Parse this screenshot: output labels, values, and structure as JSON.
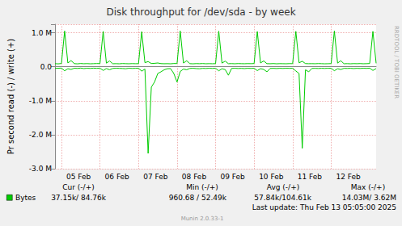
{
  "chart_data": {
    "type": "line",
    "title": "Disk throughput for /dev/sda - by week",
    "y_label": "Pr second read (-) / write (+)",
    "categories": [
      null,
      null,
      "05 Feb",
      null,
      null,
      null,
      null,
      null,
      null,
      null,
      null,
      null,
      null,
      null,
      "06 Feb",
      null,
      null,
      null,
      null,
      null,
      null,
      null,
      null,
      null,
      null,
      null,
      "07 Feb",
      null,
      null,
      null,
      null,
      null,
      null,
      null,
      null,
      null,
      null,
      null,
      "08 Feb",
      null,
      null,
      null,
      null,
      null,
      null,
      null,
      null,
      null,
      null,
      null,
      "09 Feb",
      null,
      null,
      null,
      null,
      null,
      null,
      null,
      null,
      null,
      null,
      null,
      "10 Feb",
      null,
      null,
      null,
      null,
      null,
      null,
      null,
      null,
      null,
      null,
      null,
      "11 Feb",
      null,
      null,
      null,
      null,
      null,
      null,
      null,
      null,
      null,
      null,
      null,
      "12 Feb",
      null,
      null,
      null,
      null,
      null,
      null,
      null,
      null,
      null,
      null,
      null,
      null,
      null,
      null
    ],
    "series": [
      {
        "name": "Bytes",
        "color": "#00cc00",
        "values": [
          90000,
          85000,
          95000,
          1050000,
          110000,
          180000,
          90000,
          85000,
          95000,
          88000,
          92000,
          86000,
          90000,
          94000,
          92000,
          1040000,
          105000,
          170000,
          88000,
          90000,
          86000,
          94000,
          90000,
          87000,
          92000,
          89000,
          90000,
          1030000,
          120000,
          150000,
          95000,
          100000,
          110000,
          92000,
          88000,
          90000,
          86000,
          95000,
          93000,
          1050000,
          108000,
          175000,
          90000,
          86000,
          92000,
          89000,
          94000,
          87000,
          91000,
          88000,
          91000,
          1045000,
          106000,
          165000,
          89000,
          92000,
          87000,
          93000,
          90000,
          88000,
          92000,
          90000,
          94000,
          1035000,
          110000,
          170000,
          90000,
          88000,
          93000,
          86000,
          91000,
          89000,
          87000,
          92000,
          90000,
          1040000,
          115000,
          160000,
          92000,
          89000,
          91000,
          88000,
          93000,
          90000,
          86000,
          89000,
          92000,
          1050000,
          107000,
          175000,
          88000,
          91000,
          86000,
          92000,
          89000,
          93000,
          87000,
          90000,
          95000,
          1040000,
          100000
        ]
      },
      {
        "name": "Bytes",
        "color": "#00cc00",
        "values": [
          -50000,
          -45000,
          -40000,
          -120000,
          -60000,
          -80000,
          -45000,
          -50000,
          -40000,
          -55000,
          -45000,
          -50000,
          -42000,
          -48000,
          -42000,
          -110000,
          -55000,
          -90000,
          -50000,
          -45000,
          -48000,
          -52000,
          -60000,
          -45000,
          -50000,
          -47000,
          -45000,
          -130000,
          -70000,
          -2550000,
          -600000,
          -450000,
          -200000,
          -150000,
          -90000,
          -60000,
          -55000,
          -200000,
          -450000,
          -140000,
          -70000,
          -90000,
          -50000,
          -45000,
          -55000,
          -60000,
          -48000,
          -52000,
          -45000,
          -50000,
          -44000,
          -120000,
          -60000,
          -85000,
          -250000,
          -50000,
          -45000,
          -52000,
          -48000,
          -55000,
          -46000,
          -50000,
          -45000,
          -115000,
          -58000,
          -80000,
          -150000,
          -50000,
          -47000,
          -53000,
          -46000,
          -50000,
          -44000,
          -48000,
          -46000,
          -125000,
          -200000,
          -2400000,
          -90000,
          -150000,
          -50000,
          -48000,
          -52000,
          -46000,
          -50000,
          -45000,
          -44000,
          -118000,
          -60000,
          -82000,
          -48000,
          -50000,
          -46000,
          -54000,
          -47000,
          -51000,
          -45000,
          -49000,
          -42000,
          -110000,
          -55000
        ]
      }
    ],
    "ylim": [
      -3000000,
      1250000
    ],
    "yticks": [
      {
        "value": -3000000,
        "label": "-3.0 M"
      },
      {
        "value": -2000000,
        "label": "-2.0 M"
      },
      {
        "value": -1000000,
        "label": "-1.0 M"
      },
      {
        "value": 0,
        "label": "0.0"
      },
      {
        "value": 1000000,
        "label": "1.0 M"
      }
    ],
    "grid": true,
    "stats_table": {
      "columns": [
        "Cur (-/+)",
        "Min (-/+)",
        "Avg (-/+)",
        "Max (-/+)"
      ],
      "cells": [
        "37.15k/ 84.76k",
        "960.68 / 52.49k",
        "57.84k/104.61k",
        "14.03M/ 3.62M"
      ]
    },
    "annotations": {
      "last_update": "Last update: Thu Feb 13 05:05:00 2025",
      "version": "Munin 2.0.33-1",
      "side_text": "RRDTOOL / TOBI OETIKER"
    }
  }
}
